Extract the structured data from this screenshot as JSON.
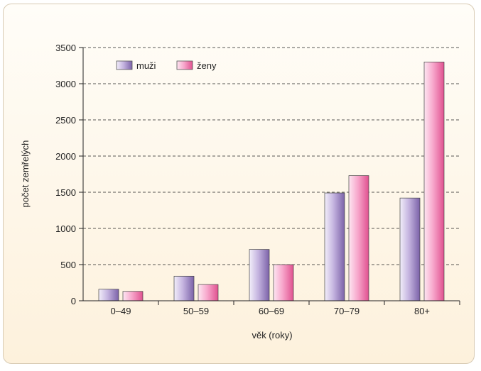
{
  "chart_data": {
    "type": "bar",
    "title": "",
    "xlabel": "věk (roky)",
    "ylabel": "počet zemřelých",
    "categories": [
      "0–49",
      "50–59",
      "60–69",
      "70–79",
      "80+"
    ],
    "ylim": [
      0,
      3500
    ],
    "yticks": [
      0,
      500,
      1000,
      1500,
      2000,
      2500,
      3000,
      3500
    ],
    "grid": true,
    "legend_position": "top-left",
    "series": [
      {
        "name": "muži",
        "values": [
          160,
          340,
          710,
          1490,
          1420
        ],
        "color": "#9b84c2"
      },
      {
        "name": "ženy",
        "values": [
          130,
          225,
          500,
          1730,
          3300
        ],
        "color": "#f28ab8"
      }
    ]
  }
}
